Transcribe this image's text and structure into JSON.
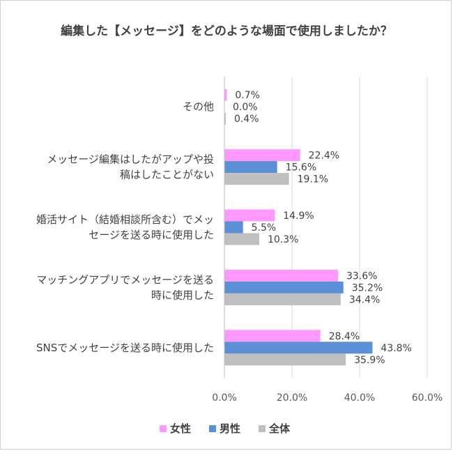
{
  "chart_data": {
    "type": "bar",
    "orientation": "horizontal",
    "title": "編集した【メッセージ】をどのような場面で使用しましたか？",
    "categories": [
      "その他",
      "メッセージ編集はしたがアップや投稿はしたことがない",
      "婚活サイト（結婚相談所含む）でメッセージを送る時に使用した",
      "マッチングアプリでメッセージを送る時に使用した",
      "SNSでメッセージを送る時に使用した"
    ],
    "category_lines": [
      [
        "その他"
      ],
      [
        "メッセージ編集はしたがアップや投",
        "稿はしたことがない"
      ],
      [
        "婚活サイト（結婚相談所含む）でメッ",
        "セージを送る時に使用した"
      ],
      [
        "マッチングアプリでメッセージを送る",
        "時に使用した"
      ],
      [
        "SNSでメッセージを送る時に使用した"
      ]
    ],
    "series": [
      {
        "name": "女性",
        "color": "#ff99ff",
        "values": [
          0.7,
          22.4,
          14.9,
          33.6,
          28.4
        ],
        "labels": [
          "0.7%",
          "22.4%",
          "14.9%",
          "33.6%",
          "28.4%"
        ]
      },
      {
        "name": "男性",
        "color": "#5b8fd6",
        "values": [
          0.0,
          15.6,
          5.5,
          35.2,
          43.8
        ],
        "labels": [
          "0.0%",
          "15.6%",
          "5.5%",
          "35.2%",
          "43.8%"
        ]
      },
      {
        "name": "全体",
        "color": "#bfbfbf",
        "values": [
          0.4,
          19.1,
          10.3,
          34.4,
          35.9
        ],
        "labels": [
          "0.4%",
          "19.1%",
          "10.3%",
          "34.4%",
          "35.9%"
        ]
      }
    ],
    "xlim": [
      0,
      60
    ],
    "xticks": [
      "0.0%",
      "20.0%",
      "40.0%",
      "60.0%"
    ],
    "grid": true,
    "legend_position": "bottom"
  }
}
